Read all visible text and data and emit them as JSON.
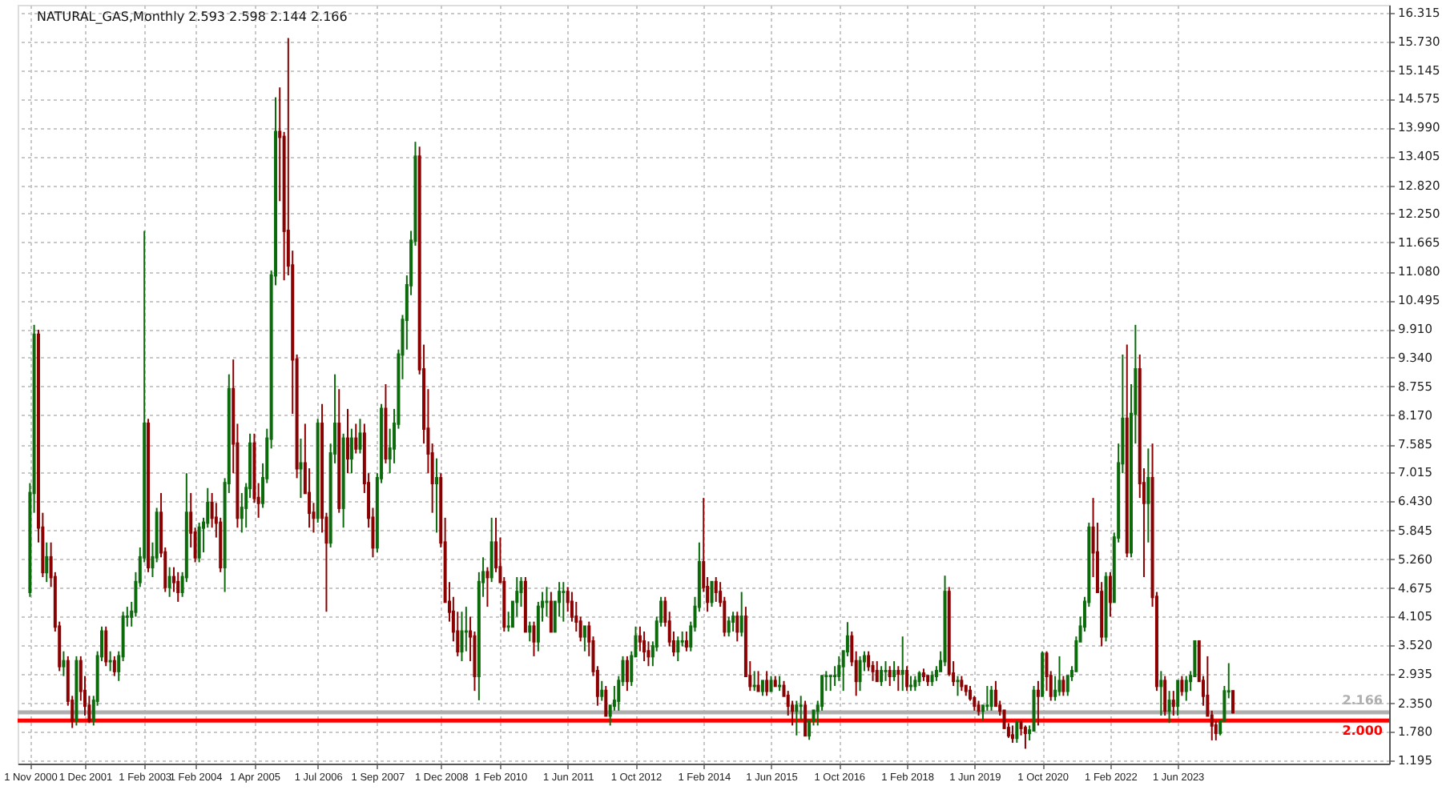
{
  "chart_data": {
    "type": "candlestick",
    "title": "NATURAL_GAS,Monthly  2.593 2.598 2.144 2.166",
    "x": [
      "2000-11",
      "2000-12",
      "2001-01",
      "2001-02",
      "2001-03",
      "2001-04",
      "2001-05",
      "2001-06",
      "2001-07",
      "2001-08",
      "2001-09",
      "2001-10",
      "2001-11",
      "2001-12",
      "2002-01",
      "2002-02",
      "2002-03",
      "2002-04",
      "2002-05",
      "2002-06",
      "2002-07",
      "2002-08",
      "2002-09",
      "2002-10",
      "2002-11",
      "2002-12",
      "2003-01",
      "2003-02",
      "2003-03",
      "2003-04",
      "2003-05",
      "2003-06",
      "2003-07",
      "2003-08",
      "2003-09",
      "2003-10",
      "2003-11",
      "2003-12",
      "2004-01",
      "2004-02",
      "2004-03",
      "2004-04",
      "2004-05",
      "2004-06",
      "2004-07",
      "2004-08",
      "2004-09",
      "2004-10",
      "2004-11",
      "2004-12",
      "2005-01",
      "2005-02",
      "2005-03",
      "2005-04",
      "2005-05",
      "2005-06",
      "2005-07",
      "2005-08",
      "2005-09",
      "2005-10",
      "2005-11",
      "2005-12",
      "2006-01",
      "2006-02",
      "2006-03",
      "2006-04",
      "2006-05",
      "2006-06",
      "2006-07",
      "2006-08",
      "2006-09",
      "2006-10",
      "2006-11",
      "2006-12",
      "2007-01",
      "2007-02",
      "2007-03",
      "2007-04",
      "2007-05",
      "2007-06",
      "2007-07",
      "2007-08",
      "2007-09",
      "2007-10",
      "2007-11",
      "2007-12",
      "2008-01",
      "2008-02",
      "2008-03",
      "2008-04",
      "2008-05",
      "2008-06",
      "2008-07",
      "2008-08",
      "2008-09",
      "2008-10",
      "2008-11",
      "2008-12",
      "2009-01",
      "2009-02",
      "2009-03",
      "2009-04",
      "2009-05",
      "2009-06",
      "2009-07",
      "2009-08",
      "2009-09",
      "2009-10",
      "2009-11",
      "2009-12",
      "2010-01",
      "2010-02",
      "2010-03",
      "2010-04",
      "2010-05",
      "2010-06",
      "2010-07",
      "2010-08",
      "2010-09",
      "2010-10",
      "2010-11",
      "2010-12",
      "2011-01",
      "2011-02",
      "2011-03",
      "2011-04",
      "2011-05",
      "2011-06",
      "2011-07",
      "2011-08",
      "2011-09",
      "2011-10",
      "2011-11",
      "2011-12",
      "2012-01",
      "2012-02",
      "2012-03",
      "2012-04",
      "2012-05",
      "2012-06",
      "2012-07",
      "2012-08",
      "2012-09",
      "2012-10",
      "2012-11",
      "2012-12",
      "2013-01",
      "2013-02",
      "2013-03",
      "2013-04",
      "2013-05",
      "2013-06",
      "2013-07",
      "2013-08",
      "2013-09",
      "2013-10",
      "2013-11",
      "2013-12",
      "2014-01",
      "2014-02",
      "2014-03",
      "2014-04",
      "2014-05",
      "2014-06",
      "2014-07",
      "2014-08",
      "2014-09",
      "2014-10",
      "2014-11",
      "2014-12",
      "2015-01",
      "2015-02",
      "2015-03",
      "2015-04",
      "2015-05",
      "2015-06",
      "2015-07",
      "2015-08",
      "2015-09",
      "2015-10",
      "2015-11",
      "2015-12",
      "2016-01",
      "2016-02",
      "2016-03",
      "2016-04",
      "2016-05",
      "2016-06",
      "2016-07",
      "2016-08",
      "2016-09",
      "2016-10",
      "2016-11",
      "2016-12",
      "2017-01",
      "2017-02",
      "2017-03",
      "2017-04",
      "2017-05",
      "2017-06",
      "2017-07",
      "2017-08",
      "2017-09",
      "2017-10",
      "2017-11",
      "2017-12",
      "2018-01",
      "2018-02",
      "2018-03",
      "2018-04",
      "2018-05",
      "2018-06",
      "2018-07",
      "2018-08",
      "2018-09",
      "2018-10",
      "2018-11",
      "2018-12",
      "2019-01",
      "2019-02",
      "2019-03",
      "2019-04",
      "2019-05",
      "2019-06",
      "2019-07",
      "2019-08",
      "2019-09",
      "2019-10",
      "2019-11",
      "2019-12",
      "2020-01",
      "2020-02",
      "2020-03",
      "2020-04",
      "2020-05",
      "2020-06",
      "2020-07",
      "2020-08",
      "2020-09",
      "2020-10",
      "2020-11",
      "2020-12",
      "2021-01",
      "2021-02",
      "2021-03",
      "2021-04",
      "2021-05",
      "2021-06",
      "2021-07",
      "2021-08",
      "2021-09",
      "2021-10",
      "2021-11",
      "2021-12",
      "2022-01",
      "2022-02",
      "2022-03",
      "2022-04",
      "2022-05",
      "2022-06",
      "2022-07",
      "2022-08",
      "2022-09",
      "2022-10",
      "2022-11",
      "2022-12",
      "2023-01",
      "2023-02",
      "2023-03",
      "2023-04",
      "2023-05",
      "2023-06",
      "2023-07",
      "2023-08",
      "2023-09",
      "2023-10",
      "2023-11",
      "2023-12",
      "2024-01",
      "2024-02",
      "2024-03",
      "2024-04",
      "2024-05",
      "2024-06",
      "2024-07"
    ],
    "ohlc": [
      [
        4.6,
        6.8,
        4.5,
        6.6
      ],
      [
        6.6,
        10.0,
        6.2,
        9.8
      ],
      [
        9.8,
        9.9,
        5.6,
        5.9
      ],
      [
        5.9,
        6.2,
        4.9,
        5.0
      ],
      [
        5.0,
        5.6,
        4.8,
        5.3
      ],
      [
        5.3,
        5.6,
        4.7,
        4.9
      ],
      [
        4.9,
        5.0,
        3.8,
        3.9
      ],
      [
        3.9,
        4.0,
        3.0,
        3.1
      ],
      [
        3.1,
        3.4,
        2.9,
        3.2
      ],
      [
        3.2,
        3.3,
        2.3,
        2.4
      ],
      [
        2.4,
        2.5,
        1.85,
        2.0
      ],
      [
        2.0,
        3.3,
        1.9,
        3.2
      ],
      [
        3.2,
        3.3,
        2.4,
        2.6
      ],
      [
        2.6,
        2.9,
        2.1,
        2.3
      ],
      [
        2.3,
        2.5,
        1.95,
        2.0
      ],
      [
        2.0,
        2.5,
        1.9,
        2.4
      ],
      [
        2.4,
        3.4,
        2.3,
        3.3
      ],
      [
        3.3,
        3.9,
        3.2,
        3.8
      ],
      [
        3.8,
        3.9,
        3.1,
        3.2
      ],
      [
        3.2,
        3.4,
        3.0,
        3.2
      ],
      [
        3.2,
        3.3,
        2.9,
        3.0
      ],
      [
        3.0,
        3.4,
        2.8,
        3.3
      ],
      [
        3.3,
        4.2,
        3.2,
        4.1
      ],
      [
        4.1,
        4.3,
        3.9,
        4.1
      ],
      [
        4.1,
        4.4,
        3.9,
        4.2
      ],
      [
        4.2,
        5.0,
        4.1,
        4.8
      ],
      [
        4.8,
        5.5,
        4.7,
        5.3
      ],
      [
        5.3,
        11.9,
        5.2,
        8.0
      ],
      [
        8.0,
        8.1,
        5.0,
        5.1
      ],
      [
        5.1,
        5.6,
        4.9,
        5.3
      ],
      [
        5.3,
        6.3,
        5.2,
        6.2
      ],
      [
        6.2,
        6.6,
        5.3,
        5.4
      ],
      [
        5.4,
        5.5,
        4.6,
        4.7
      ],
      [
        4.7,
        5.1,
        4.5,
        4.9
      ],
      [
        4.9,
        5.1,
        4.6,
        4.8
      ],
      [
        4.8,
        5.0,
        4.4,
        4.6
      ],
      [
        4.6,
        5.0,
        4.5,
        4.9
      ],
      [
        4.9,
        7.0,
        4.8,
        6.2
      ],
      [
        6.2,
        6.6,
        5.5,
        5.8
      ],
      [
        5.8,
        5.9,
        5.2,
        5.3
      ],
      [
        5.3,
        6.0,
        5.2,
        5.9
      ],
      [
        5.9,
        6.1,
        5.4,
        6.0
      ],
      [
        6.0,
        6.7,
        5.9,
        6.4
      ],
      [
        6.4,
        6.6,
        5.9,
        6.1
      ],
      [
        6.1,
        6.4,
        5.7,
        6.0
      ],
      [
        6.0,
        6.1,
        5.0,
        5.1
      ],
      [
        5.1,
        6.9,
        4.6,
        6.8
      ],
      [
        6.8,
        9.0,
        6.6,
        8.7
      ],
      [
        8.7,
        9.3,
        7.0,
        7.6
      ],
      [
        7.6,
        8.0,
        5.9,
        6.1
      ],
      [
        6.1,
        6.6,
        5.8,
        6.3
      ],
      [
        6.3,
        6.8,
        5.9,
        6.7
      ],
      [
        6.7,
        7.8,
        6.5,
        7.6
      ],
      [
        7.6,
        7.8,
        6.4,
        6.5
      ],
      [
        6.5,
        6.8,
        6.1,
        6.4
      ],
      [
        6.4,
        7.2,
        6.3,
        6.9
      ],
      [
        6.9,
        7.9,
        6.8,
        7.7
      ],
      [
        7.7,
        11.1,
        7.5,
        11.0
      ],
      [
        11.0,
        14.6,
        10.8,
        13.9
      ],
      [
        13.9,
        14.8,
        12.5,
        13.8
      ],
      [
        13.8,
        13.9,
        10.9,
        11.9
      ],
      [
        11.9,
        15.8,
        11.0,
        11.2
      ],
      [
        11.2,
        11.5,
        8.2,
        9.3
      ],
      [
        9.3,
        9.4,
        6.9,
        7.1
      ],
      [
        7.1,
        7.7,
        6.5,
        7.2
      ],
      [
        7.2,
        8.0,
        6.6,
        6.6
      ],
      [
        6.6,
        7.1,
        5.9,
        6.2
      ],
      [
        6.2,
        6.4,
        5.8,
        6.1
      ],
      [
        6.1,
        8.1,
        6.0,
        8.0
      ],
      [
        8.0,
        8.4,
        5.8,
        6.1
      ],
      [
        6.1,
        6.2,
        4.2,
        5.6
      ],
      [
        5.6,
        7.6,
        5.5,
        7.4
      ],
      [
        7.4,
        9.0,
        7.2,
        8.0
      ],
      [
        8.0,
        8.7,
        6.2,
        6.3
      ],
      [
        6.3,
        7.8,
        5.9,
        7.7
      ],
      [
        7.7,
        8.3,
        7.0,
        7.3
      ],
      [
        7.3,
        7.9,
        7.0,
        7.7
      ],
      [
        7.7,
        8.0,
        7.4,
        7.5
      ],
      [
        7.5,
        8.1,
        7.4,
        7.8
      ],
      [
        7.8,
        8.0,
        6.6,
        6.8
      ],
      [
        6.8,
        7.0,
        5.9,
        6.1
      ],
      [
        6.1,
        6.3,
        5.3,
        5.5
      ],
      [
        5.5,
        7.0,
        5.4,
        6.9
      ],
      [
        6.9,
        8.4,
        6.8,
        8.3
      ],
      [
        8.3,
        8.8,
        7.2,
        7.3
      ],
      [
        7.3,
        7.9,
        7.0,
        7.5
      ],
      [
        7.5,
        8.3,
        7.2,
        8.0
      ],
      [
        8.0,
        9.5,
        7.9,
        9.4
      ],
      [
        9.4,
        10.2,
        8.9,
        10.1
      ],
      [
        10.1,
        11.0,
        9.5,
        10.8
      ],
      [
        10.8,
        11.9,
        10.6,
        11.7
      ],
      [
        11.7,
        13.7,
        11.6,
        13.4
      ],
      [
        13.4,
        13.6,
        9.0,
        9.1
      ],
      [
        9.1,
        9.6,
        7.6,
        7.9
      ],
      [
        7.9,
        8.7,
        7.0,
        7.4
      ],
      [
        7.4,
        7.6,
        6.2,
        6.8
      ],
      [
        6.8,
        7.3,
        5.8,
        6.9
      ],
      [
        6.9,
        7.0,
        5.5,
        5.6
      ],
      [
        5.6,
        6.1,
        4.4,
        4.4
      ],
      [
        4.4,
        4.8,
        4.0,
        4.2
      ],
      [
        4.2,
        4.5,
        3.6,
        3.8
      ],
      [
        3.8,
        4.2,
        3.3,
        3.4
      ],
      [
        3.4,
        4.2,
        3.2,
        3.8
      ],
      [
        3.8,
        4.3,
        3.4,
        3.8
      ],
      [
        3.8,
        4.1,
        3.2,
        3.7
      ],
      [
        3.7,
        3.8,
        2.6,
        2.9
      ],
      [
        2.9,
        5.0,
        2.41,
        4.8
      ],
      [
        4.8,
        5.3,
        4.5,
        5.0
      ],
      [
        5.0,
        5.1,
        4.3,
        4.9
      ],
      [
        4.9,
        6.1,
        4.8,
        5.6
      ],
      [
        5.6,
        6.1,
        5.0,
        5.1
      ],
      [
        5.1,
        5.7,
        4.8,
        4.8
      ],
      [
        4.8,
        4.9,
        3.8,
        3.9
      ],
      [
        3.9,
        4.2,
        3.8,
        3.9
      ],
      [
        3.9,
        4.4,
        3.9,
        4.4
      ],
      [
        4.4,
        4.9,
        4.1,
        4.6
      ],
      [
        4.6,
        4.9,
        4.3,
        4.8
      ],
      [
        4.8,
        4.9,
        3.8,
        3.8
      ],
      [
        3.8,
        4.0,
        3.6,
        3.9
      ],
      [
        3.9,
        4.0,
        3.3,
        3.6
      ],
      [
        3.6,
        4.4,
        3.4,
        4.3
      ],
      [
        4.3,
        4.6,
        4.0,
        4.4
      ],
      [
        4.4,
        4.7,
        4.1,
        4.4
      ],
      [
        4.4,
        4.6,
        3.8,
        3.8
      ],
      [
        3.8,
        4.4,
        3.8,
        4.4
      ],
      [
        4.4,
        4.8,
        4.1,
        4.6
      ],
      [
        4.6,
        4.8,
        4.0,
        4.6
      ],
      [
        4.6,
        4.7,
        4.2,
        4.4
      ],
      [
        4.4,
        4.6,
        4.0,
        4.1
      ],
      [
        4.1,
        4.4,
        3.8,
        4.0
      ],
      [
        4.0,
        4.1,
        3.6,
        3.7
      ],
      [
        3.7,
        3.9,
        3.4,
        3.9
      ],
      [
        3.9,
        4.0,
        3.3,
        3.6
      ],
      [
        3.6,
        3.7,
        2.9,
        3.0
      ],
      [
        3.0,
        3.1,
        2.3,
        2.5
      ],
      [
        2.5,
        2.8,
        2.4,
        2.6
      ],
      [
        2.6,
        2.7,
        2.1,
        2.1
      ],
      [
        2.1,
        2.3,
        1.9,
        2.3
      ],
      [
        2.3,
        2.7,
        2.2,
        2.4
      ],
      [
        2.4,
        2.9,
        2.2,
        2.8
      ],
      [
        2.8,
        3.3,
        2.7,
        3.2
      ],
      [
        3.2,
        3.3,
        2.6,
        2.8
      ],
      [
        2.8,
        3.4,
        2.7,
        3.3
      ],
      [
        3.3,
        3.9,
        3.3,
        3.7
      ],
      [
        3.7,
        3.9,
        3.4,
        3.6
      ],
      [
        3.6,
        3.8,
        3.2,
        3.4
      ],
      [
        3.4,
        3.6,
        3.1,
        3.3
      ],
      [
        3.3,
        3.6,
        3.1,
        3.5
      ],
      [
        3.5,
        4.1,
        3.4,
        4.0
      ],
      [
        4.0,
        4.5,
        3.9,
        4.4
      ],
      [
        4.4,
        4.5,
        3.9,
        4.0
      ],
      [
        4.0,
        4.2,
        3.5,
        3.6
      ],
      [
        3.6,
        3.8,
        3.3,
        3.4
      ],
      [
        3.4,
        3.7,
        3.2,
        3.6
      ],
      [
        3.6,
        3.8,
        3.5,
        3.6
      ],
      [
        3.6,
        3.8,
        3.4,
        3.5
      ],
      [
        3.5,
        4.0,
        3.4,
        3.9
      ],
      [
        3.9,
        4.5,
        3.8,
        4.3
      ],
      [
        4.3,
        5.6,
        4.2,
        5.2
      ],
      [
        5.2,
        6.5,
        4.6,
        4.7
      ],
      [
        4.7,
        4.9,
        4.2,
        4.4
      ],
      [
        4.4,
        4.8,
        4.3,
        4.8
      ],
      [
        4.8,
        4.9,
        4.4,
        4.6
      ],
      [
        4.6,
        4.8,
        4.3,
        4.4
      ],
      [
        4.4,
        4.5,
        3.7,
        3.8
      ],
      [
        3.8,
        4.1,
        3.7,
        4.0
      ],
      [
        4.0,
        4.2,
        3.8,
        4.1
      ],
      [
        4.1,
        4.2,
        3.6,
        3.8
      ],
      [
        3.8,
        4.6,
        3.7,
        4.1
      ],
      [
        4.1,
        4.3,
        2.9,
        2.9
      ],
      [
        2.9,
        3.2,
        2.6,
        2.7
      ],
      [
        2.7,
        3.0,
        2.6,
        2.7
      ],
      [
        2.7,
        3.0,
        2.6,
        2.6
      ],
      [
        2.6,
        2.8,
        2.5,
        2.8
      ],
      [
        2.8,
        3.0,
        2.5,
        2.6
      ],
      [
        2.6,
        2.9,
        2.6,
        2.8
      ],
      [
        2.8,
        2.9,
        2.7,
        2.7
      ],
      [
        2.7,
        2.9,
        2.6,
        2.7
      ],
      [
        2.7,
        2.8,
        2.5,
        2.5
      ],
      [
        2.5,
        2.6,
        2.1,
        2.3
      ],
      [
        2.3,
        2.4,
        1.9,
        2.2
      ],
      [
        2.2,
        2.4,
        1.7,
        2.3
      ],
      [
        2.3,
        2.5,
        2.0,
        2.3
      ],
      [
        2.3,
        2.4,
        1.7,
        1.7
      ],
      [
        1.7,
        2.0,
        1.61,
        2.0
      ],
      [
        2.0,
        2.2,
        1.9,
        2.2
      ],
      [
        2.2,
        2.4,
        1.9,
        2.3
      ],
      [
        2.3,
        2.9,
        2.2,
        2.9
      ],
      [
        2.9,
        3.0,
        2.6,
        2.9
      ],
      [
        2.9,
        2.9,
        2.6,
        2.9
      ],
      [
        2.9,
        3.1,
        2.7,
        2.9
      ],
      [
        2.9,
        3.3,
        2.8,
        3.1
      ],
      [
        3.1,
        3.4,
        2.6,
        3.4
      ],
      [
        3.4,
        3.99,
        3.3,
        3.7
      ],
      [
        3.7,
        3.8,
        3.1,
        3.2
      ],
      [
        3.2,
        3.4,
        2.5,
        2.8
      ],
      [
        2.8,
        3.3,
        2.6,
        3.2
      ],
      [
        3.2,
        3.4,
        3.0,
        3.3
      ],
      [
        3.3,
        3.4,
        3.0,
        3.1
      ],
      [
        3.1,
        3.2,
        2.8,
        3.0
      ],
      [
        3.0,
        3.2,
        2.8,
        2.8
      ],
      [
        2.8,
        3.1,
        2.7,
        3.0
      ],
      [
        3.0,
        3.2,
        2.8,
        3.0
      ],
      [
        3.0,
        3.1,
        2.7,
        2.9
      ],
      [
        2.9,
        3.2,
        2.8,
        3.0
      ],
      [
        3.0,
        3.1,
        2.6,
        2.95
      ],
      [
        2.95,
        3.7,
        2.6,
        3.0
      ],
      [
        3.0,
        3.1,
        2.6,
        2.7
      ],
      [
        2.7,
        2.9,
        2.6,
        2.7
      ],
      [
        2.7,
        2.9,
        2.6,
        2.8
      ],
      [
        2.8,
        3.0,
        2.7,
        2.95
      ],
      [
        2.95,
        3.05,
        2.8,
        2.9
      ],
      [
        2.9,
        2.9,
        2.7,
        2.8
      ],
      [
        2.8,
        3.0,
        2.7,
        2.9
      ],
      [
        2.9,
        3.1,
        2.8,
        3.0
      ],
      [
        3.0,
        3.4,
        3.0,
        3.2
      ],
      [
        3.2,
        4.93,
        3.1,
        4.6
      ],
      [
        4.6,
        4.7,
        2.9,
        2.95
      ],
      [
        2.95,
        3.2,
        2.7,
        2.8
      ],
      [
        2.8,
        2.9,
        2.5,
        2.8
      ],
      [
        2.8,
        2.9,
        2.6,
        2.7
      ],
      [
        2.7,
        2.7,
        2.5,
        2.6
      ],
      [
        2.6,
        2.7,
        2.4,
        2.45
      ],
      [
        2.45,
        2.5,
        2.2,
        2.3
      ],
      [
        2.3,
        2.4,
        2.1,
        2.2
      ],
      [
        2.2,
        2.3,
        2.0,
        2.3
      ],
      [
        2.3,
        2.7,
        2.2,
        2.3
      ],
      [
        2.3,
        2.7,
        2.2,
        2.6
      ],
      [
        2.6,
        2.8,
        2.3,
        2.3
      ],
      [
        2.3,
        2.4,
        2.1,
        2.2
      ],
      [
        2.2,
        2.2,
        1.85,
        1.85
      ],
      [
        1.85,
        1.95,
        1.65,
        1.7
      ],
      [
        1.7,
        1.9,
        1.55,
        1.65
      ],
      [
        1.65,
        2.0,
        1.55,
        1.95
      ],
      [
        1.95,
        2.0,
        1.7,
        1.85
      ],
      [
        1.85,
        1.9,
        1.43,
        1.75
      ],
      [
        1.75,
        1.9,
        1.6,
        1.8
      ],
      [
        1.8,
        2.7,
        1.8,
        2.6
      ],
      [
        2.6,
        2.8,
        1.9,
        2.5
      ],
      [
        2.5,
        3.4,
        2.5,
        3.35
      ],
      [
        3.35,
        3.4,
        2.6,
        2.9
      ],
      [
        2.9,
        3.0,
        2.4,
        2.5
      ],
      [
        2.5,
        2.9,
        2.4,
        2.6
      ],
      [
        2.6,
        3.3,
        2.5,
        2.8
      ],
      [
        2.8,
        2.9,
        2.5,
        2.6
      ],
      [
        2.6,
        2.9,
        2.5,
        2.9
      ],
      [
        2.9,
        3.1,
        2.8,
        3.0
      ],
      [
        3.0,
        3.7,
        3.0,
        3.6
      ],
      [
        3.6,
        4.1,
        3.6,
        3.9
      ],
      [
        3.9,
        4.5,
        3.8,
        4.4
      ],
      [
        4.4,
        6.0,
        4.3,
        5.9
      ],
      [
        5.9,
        6.5,
        4.9,
        5.4
      ],
      [
        5.4,
        6.0,
        4.6,
        4.6
      ],
      [
        4.6,
        4.8,
        3.5,
        3.7
      ],
      [
        3.7,
        5.0,
        3.6,
        4.9
      ],
      [
        4.9,
        5.0,
        4.1,
        4.4
      ],
      [
        4.4,
        5.8,
        4.4,
        5.7
      ],
      [
        5.7,
        7.6,
        5.6,
        7.2
      ],
      [
        7.2,
        9.4,
        7.0,
        8.1
      ],
      [
        8.1,
        9.6,
        5.3,
        5.4
      ],
      [
        5.4,
        8.8,
        5.3,
        8.2
      ],
      [
        8.2,
        10.0,
        7.6,
        9.1
      ],
      [
        9.1,
        9.4,
        6.5,
        6.8
      ],
      [
        6.8,
        7.1,
        4.9,
        6.4
      ],
      [
        6.4,
        7.5,
        5.6,
        6.9
      ],
      [
        6.9,
        7.6,
        4.3,
        4.5
      ],
      [
        4.5,
        4.6,
        2.6,
        2.7
      ],
      [
        2.7,
        3.0,
        2.1,
        2.8
      ],
      [
        2.8,
        2.9,
        2.1,
        2.2
      ],
      [
        2.2,
        2.6,
        1.95,
        2.4
      ],
      [
        2.4,
        2.6,
        2.1,
        2.3
      ],
      [
        2.3,
        2.8,
        2.1,
        2.8
      ],
      [
        2.8,
        2.9,
        2.5,
        2.6
      ],
      [
        2.6,
        2.9,
        2.4,
        2.8
      ],
      [
        2.8,
        3.0,
        2.6,
        2.9
      ],
      [
        2.9,
        3.6,
        2.9,
        3.6
      ],
      [
        3.6,
        3.6,
        2.8,
        2.8
      ],
      [
        2.8,
        2.9,
        2.3,
        2.5
      ],
      [
        2.5,
        3.3,
        2.1,
        2.1
      ],
      [
        2.1,
        2.2,
        1.6,
        1.9
      ],
      [
        1.9,
        2.0,
        1.6,
        1.75
      ],
      [
        1.75,
        2.0,
        1.7,
        1.99
      ],
      [
        1.99,
        2.7,
        1.99,
        2.59
      ],
      [
        2.59,
        3.16,
        2.45,
        2.59
      ],
      [
        2.593,
        2.598,
        2.144,
        2.166
      ]
    ],
    "colors": [
      "#0b6b0b",
      "#0b6b0b",
      "#8b0000",
      "#8b0000",
      "#0b6b0b",
      "#8b0000",
      "#8b0000",
      "#8b0000",
      "#0b6b0b",
      "#8b0000",
      "#8b0000",
      "#0b6b0b",
      "#8b0000",
      "#8b0000",
      "#8b0000",
      "#0b6b0b",
      "#0b6b0b",
      "#0b6b0b",
      "#8b0000",
      "#0b6b0b",
      "#8b0000",
      "#0b6b0b",
      "#0b6b0b",
      "#0b6b0b",
      "#0b6b0b",
      "#0b6b0b",
      "#0b6b0b",
      "#0b6b0b",
      "#8b0000",
      "#0b6b0b",
      "#0b6b0b",
      "#8b0000",
      "#8b0000",
      "#0b6b0b",
      "#8b0000",
      "#8b0000",
      "#0b6b0b",
      "#0b6b0b",
      "#8b0000",
      "#8b0000",
      "#0b6b0b",
      "#0b6b0b",
      "#0b6b0b",
      "#8b0000",
      "#8b0000",
      "#8b0000",
      "#0b6b0b",
      "#0b6b0b",
      "#8b0000",
      "#8b0000",
      "#0b6b0b",
      "#0b6b0b",
      "#0b6b0b",
      "#8b0000",
      "#8b0000",
      "#0b6b0b",
      "#0b6b0b",
      "#0b6b0b",
      "#0b6b0b",
      "#8b0000",
      "#8b0000",
      "#8b0000",
      "#8b0000",
      "#8b0000",
      "#0b6b0b",
      "#8b0000",
      "#8b0000",
      "#8b0000",
      "#0b6b0b",
      "#8b0000",
      "#8b0000",
      "#0b6b0b",
      "#0b6b0b",
      "#8b0000",
      "#0b6b0b",
      "#8b0000",
      "#0b6b0b",
      "#8b0000",
      "#0b6b0b",
      "#8b0000",
      "#8b0000",
      "#8b0000",
      "#0b6b0b",
      "#0b6b0b",
      "#8b0000",
      "#0b6b0b",
      "#0b6b0b",
      "#0b6b0b",
      "#0b6b0b",
      "#0b6b0b",
      "#0b6b0b",
      "#0b6b0b",
      "#8b0000",
      "#8b0000",
      "#8b0000",
      "#8b0000",
      "#0b6b0b",
      "#8b0000",
      "#8b0000",
      "#8b0000",
      "#8b0000",
      "#8b0000",
      "#0b6b0b",
      "#0b6b0b",
      "#8b0000",
      "#8b0000",
      "#0b6b0b",
      "#0b6b0b",
      "#8b0000",
      "#0b6b0b",
      "#8b0000",
      "#8b0000",
      "#8b0000",
      "#0b6b0b",
      "#0b6b0b",
      "#0b6b0b",
      "#0b6b0b",
      "#8b0000",
      "#0b6b0b",
      "#8b0000",
      "#0b6b0b",
      "#0b6b0b",
      "#0b6b0b",
      "#8b0000",
      "#0b6b0b",
      "#0b6b0b",
      "#0b6b0b",
      "#8b0000",
      "#8b0000",
      "#8b0000",
      "#8b0000",
      "#0b6b0b",
      "#8b0000",
      "#8b0000",
      "#8b0000",
      "#0b6b0b",
      "#8b0000",
      "#0b6b0b",
      "#0b6b0b",
      "#0b6b0b",
      "#0b6b0b",
      "#8b0000",
      "#0b6b0b",
      "#0b6b0b",
      "#8b0000",
      "#8b0000",
      "#8b0000",
      "#0b6b0b",
      "#0b6b0b",
      "#0b6b0b",
      "#8b0000",
      "#8b0000",
      "#8b0000",
      "#0b6b0b",
      "#0b6b0b",
      "#8b0000",
      "#0b6b0b",
      "#0b6b0b",
      "#0b6b0b",
      "#8b0000",
      "#8b0000",
      "#0b6b0b",
      "#8b0000",
      "#8b0000",
      "#8b0000",
      "#0b6b0b",
      "#0b6b0b",
      "#8b0000",
      "#0b6b0b",
      "#8b0000",
      "#8b0000",
      "#0b6b0b",
      "#8b0000",
      "#0b6b0b",
      "#8b0000",
      "#0b6b0b",
      "#8b0000",
      "#0b6b0b",
      "#8b0000",
      "#8b0000",
      "#8b0000",
      "#0b6b0b",
      "#0b6b0b",
      "#8b0000",
      "#0b6b0b",
      "#0b6b0b",
      "#0b6b0b",
      "#0b6b0b",
      "#0b6b0b",
      "#0b6b0b",
      "#0b6b0b",
      "#0b6b0b",
      "#0b6b0b",
      "#0b6b0b",
      "#8b0000",
      "#8b0000",
      "#0b6b0b",
      "#0b6b0b",
      "#8b0000",
      "#8b0000",
      "#8b0000",
      "#0b6b0b",
      "#0b6b0b",
      "#8b0000",
      "#0b6b0b",
      "#8b0000",
      "#0b6b0b",
      "#8b0000",
      "#0b6b0b",
      "#0b6b0b",
      "#0b6b0b",
      "#8b0000",
      "#8b0000",
      "#0b6b0b",
      "#0b6b0b",
      "#0b6b0b",
      "#0b6b0b",
      "#8b0000",
      "#8b0000",
      "#0b6b0b",
      "#8b0000",
      "#8b0000",
      "#8b0000",
      "#8b0000",
      "#8b0000",
      "#0b6b0b",
      "#0b6b0b",
      "#0b6b0b",
      "#8b0000",
      "#8b0000",
      "#8b0000",
      "#8b0000",
      "#8b0000",
      "#0b6b0b",
      "#8b0000",
      "#8b0000",
      "#0b6b0b",
      "#0b6b0b",
      "#8b0000",
      "#0b6b0b",
      "#8b0000",
      "#8b0000",
      "#0b6b0b",
      "#0b6b0b",
      "#8b0000",
      "#0b6b0b",
      "#0b6b0b",
      "#0b6b0b",
      "#0b6b0b",
      "#0b6b0b",
      "#0b6b0b",
      "#8b0000",
      "#8b0000",
      "#8b0000",
      "#0b6b0b",
      "#8b0000",
      "#0b6b0b",
      "#0b6b0b",
      "#0b6b0b",
      "#8b0000",
      "#0b6b0b",
      "#0b6b0b",
      "#8b0000",
      "#8b0000",
      "#0b6b0b",
      "#8b0000",
      "#8b0000",
      "#0b6b0b",
      "#8b0000",
      "#0b6b0b",
      "#8b0000",
      "#0b6b0b",
      "#8b0000",
      "#0b6b0b",
      "#0b6b0b",
      "#0b6b0b",
      "#8b0000",
      "#8b0000",
      "#8b0000",
      "#8b0000",
      "#8b0000",
      "#0b6b0b",
      "#0b6b0b",
      "#0b6b0b",
      "#8b0000"
    ],
    "xlim": [
      "2000-10-01",
      "2027-06-01"
    ],
    "ylim": [
      1.13,
      16.47
    ],
    "xticks": [
      {
        "value": "2000-11-01",
        "label": "1 Nov 2000"
      },
      {
        "value": "2001-12-01",
        "label": "1 Dec 2001"
      },
      {
        "value": "2003-02-01",
        "label": "1 Feb 2003"
      },
      {
        "value": "2004-02-01",
        "label": "1 Feb 2004"
      },
      {
        "value": "2005-04-01",
        "label": "1 Apr 2005"
      },
      {
        "value": "2006-07-01",
        "label": "1 Jul 2006"
      },
      {
        "value": "2007-09-01",
        "label": "1 Sep 2007"
      },
      {
        "value": "2008-12-01",
        "label": "1 Dec 2008"
      },
      {
        "value": "2010-02-01",
        "label": "1 Feb 2010"
      },
      {
        "value": "2011-06-01",
        "label": "1 Jun 2011"
      },
      {
        "value": "2012-10-01",
        "label": "1 Oct 2012"
      },
      {
        "value": "2014-02-01",
        "label": "1 Feb 2014"
      },
      {
        "value": "2015-06-01",
        "label": "1 Jun 2015"
      },
      {
        "value": "2016-10-01",
        "label": "1 Oct 2016"
      },
      {
        "value": "2018-02-01",
        "label": "1 Feb 2018"
      },
      {
        "value": "2019-06-01",
        "label": "1 Jun 2019"
      },
      {
        "value": "2020-10-01",
        "label": "1 Oct 2020"
      },
      {
        "value": "2022-02-01",
        "label": "1 Feb 2022"
      },
      {
        "value": "2023-06-01",
        "label": "1 Jun 2023"
      }
    ],
    "yticks": [
      {
        "value": 1.195,
        "label": "1.195"
      },
      {
        "value": 1.78,
        "label": "1.780"
      },
      {
        "value": 2.35,
        "label": "2.350"
      },
      {
        "value": 2.935,
        "label": "2.935"
      },
      {
        "value": 3.52,
        "label": "3.520"
      },
      {
        "value": 4.105,
        "label": "4.105"
      },
      {
        "value": 4.675,
        "label": "4.675"
      },
      {
        "value": 5.26,
        "label": "5.260"
      },
      {
        "value": 5.845,
        "label": "5.845"
      },
      {
        "value": 6.43,
        "label": "6.430"
      },
      {
        "value": 7.015,
        "label": "7.015"
      },
      {
        "value": 7.585,
        "label": "7.585"
      },
      {
        "value": 8.17,
        "label": "8.170"
      },
      {
        "value": 8.755,
        "label": "8.755"
      },
      {
        "value": 9.34,
        "label": "9.340"
      },
      {
        "value": 9.91,
        "label": "9.910"
      },
      {
        "value": 10.495,
        "label": "10.495"
      },
      {
        "value": 11.08,
        "label": "11.080"
      },
      {
        "value": 11.665,
        "label": "11.665"
      },
      {
        "value": 12.25,
        "label": "12.250"
      },
      {
        "value": 12.82,
        "label": "12.820"
      },
      {
        "value": 13.405,
        "label": "13.405"
      },
      {
        "value": 13.99,
        "label": "13.990"
      },
      {
        "value": 14.575,
        "label": "14.575"
      },
      {
        "value": 15.145,
        "label": "15.145"
      },
      {
        "value": 15.73,
        "label": "15.730"
      },
      {
        "value": 16.315,
        "label": "16.315"
      }
    ],
    "ref_lines": [
      {
        "axis": "y",
        "value": 2.0,
        "label": "2.000",
        "color": "#ff0000"
      },
      {
        "axis": "y",
        "value": 2.166,
        "label": "2.166",
        "color": "#b0b0b0"
      }
    ],
    "grid": true,
    "legend": false
  }
}
